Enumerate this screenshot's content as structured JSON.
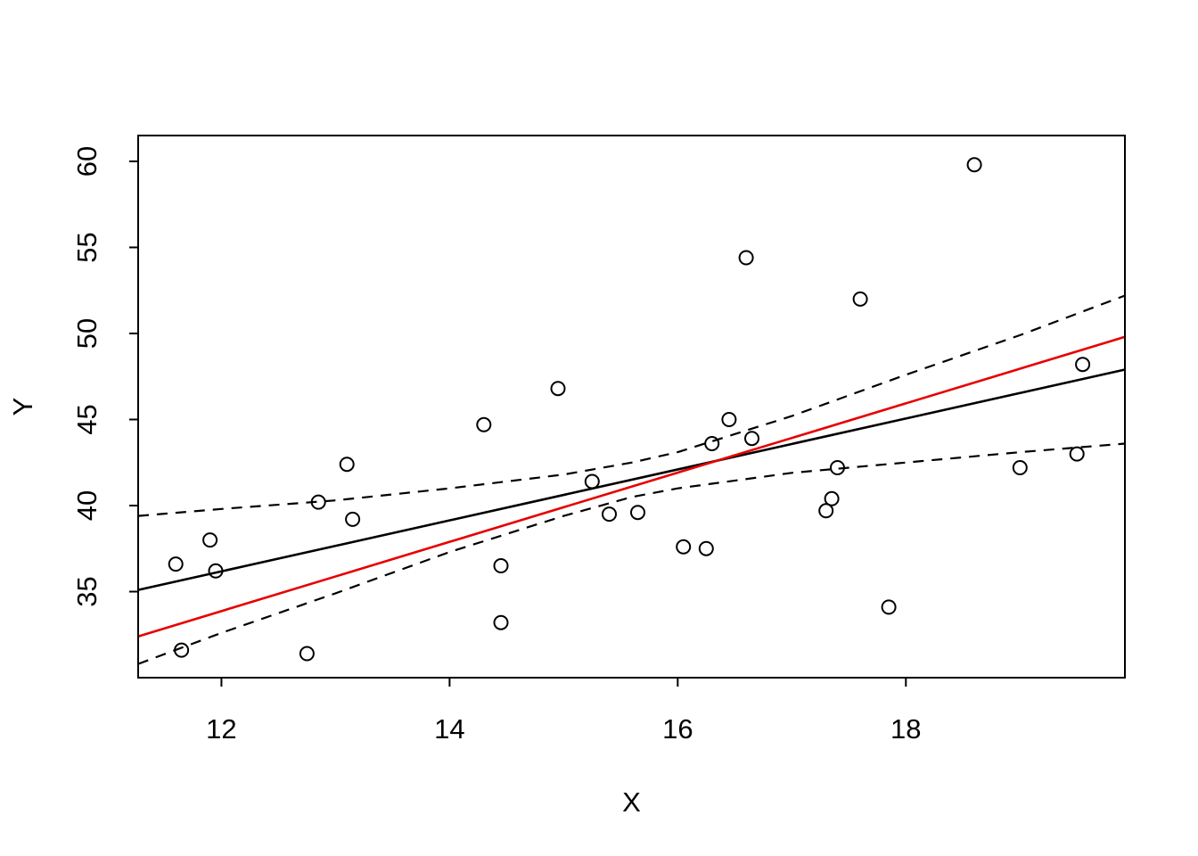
{
  "figure": {
    "background": "#ffffff"
  },
  "chart_data": {
    "type": "scatter",
    "title": "",
    "xlabel": "X",
    "ylabel": "Y",
    "xlim": [
      11.27,
      19.92
    ],
    "ylim": [
      30.0,
      61.5
    ],
    "xticks": [
      12,
      14,
      16,
      18
    ],
    "yticks": [
      35,
      40,
      45,
      50,
      55,
      60
    ],
    "grid": false,
    "legend": "none",
    "point_style": {
      "marker": "open-circle",
      "color": "#000000",
      "radius_px": 7.5
    },
    "points": [
      [
        11.6,
        36.6
      ],
      [
        11.65,
        31.6
      ],
      [
        11.9,
        38.0
      ],
      [
        11.95,
        36.2
      ],
      [
        12.75,
        31.4
      ],
      [
        12.85,
        40.2
      ],
      [
        13.1,
        42.4
      ],
      [
        13.15,
        39.2
      ],
      [
        14.3,
        44.7
      ],
      [
        14.45,
        36.5
      ],
      [
        14.45,
        33.2
      ],
      [
        14.95,
        46.8
      ],
      [
        15.25,
        41.4
      ],
      [
        15.4,
        39.5
      ],
      [
        15.65,
        39.6
      ],
      [
        16.05,
        37.6
      ],
      [
        16.25,
        37.5
      ],
      [
        16.3,
        43.6
      ],
      [
        16.45,
        45.0
      ],
      [
        16.6,
        54.4
      ],
      [
        16.65,
        43.9
      ],
      [
        17.3,
        39.7
      ],
      [
        17.35,
        40.4
      ],
      [
        17.4,
        42.2
      ],
      [
        17.6,
        52.0
      ],
      [
        17.85,
        34.1
      ],
      [
        18.6,
        59.8
      ],
      [
        19.0,
        42.2
      ],
      [
        19.5,
        43.0
      ],
      [
        19.55,
        48.2
      ]
    ],
    "lines": [
      {
        "name": "fitted-regression-line",
        "style": "solid",
        "color": "#000000",
        "points": [
          [
            11.27,
            35.1
          ],
          [
            19.92,
            47.9
          ]
        ]
      },
      {
        "name": "reference-line-red",
        "style": "solid",
        "color": "#e60000",
        "points": [
          [
            11.27,
            32.4
          ],
          [
            19.92,
            49.8
          ]
        ]
      },
      {
        "name": "upper-confidence-band",
        "style": "dashed",
        "color": "#000000",
        "points": [
          [
            11.27,
            39.4
          ],
          [
            12,
            39.8
          ],
          [
            13,
            40.3
          ],
          [
            14,
            41.0
          ],
          [
            15,
            41.8
          ],
          [
            15.6,
            42.5
          ],
          [
            16,
            43.1
          ],
          [
            17,
            45.2
          ],
          [
            18,
            47.6
          ],
          [
            19,
            49.9
          ],
          [
            19.92,
            52.2
          ]
        ]
      },
      {
        "name": "lower-confidence-band",
        "style": "dashed",
        "color": "#000000",
        "points": [
          [
            11.27,
            30.8
          ],
          [
            12,
            32.6
          ],
          [
            13,
            34.9
          ],
          [
            14,
            37.3
          ],
          [
            15,
            39.4
          ],
          [
            15.6,
            40.5
          ],
          [
            16,
            41.0
          ],
          [
            17,
            41.9
          ],
          [
            18,
            42.5
          ],
          [
            19,
            43.1
          ],
          [
            19.92,
            43.6
          ]
        ]
      }
    ]
  }
}
